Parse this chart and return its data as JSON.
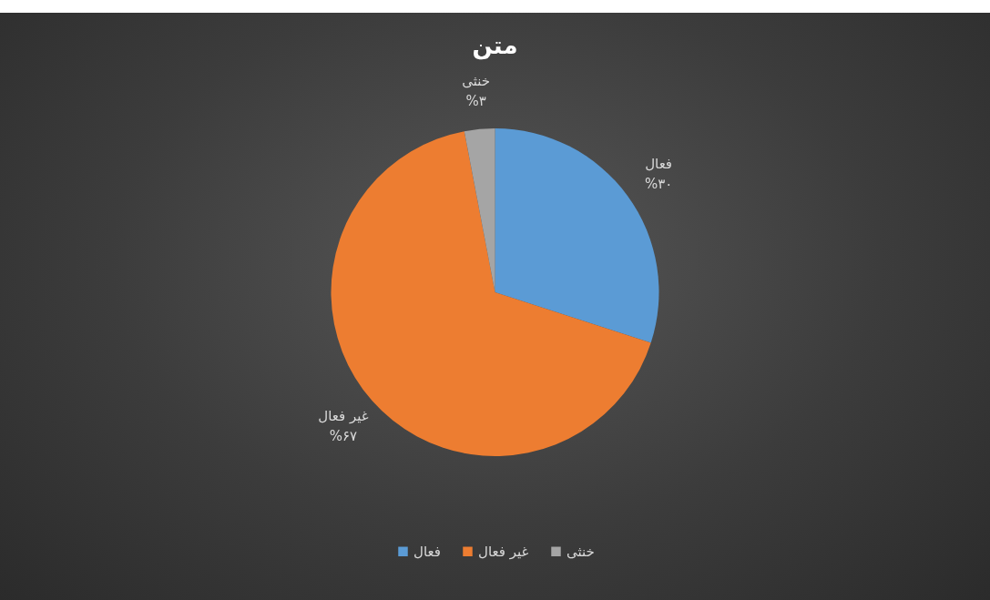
{
  "chart_data": {
    "type": "pie",
    "title": "متن",
    "categories": [
      "فعال",
      "غیر فعال",
      "خنثی"
    ],
    "values": [
      30,
      67,
      3
    ],
    "colors": [
      "#5b9bd5",
      "#ed7d31",
      "#a5a5a5"
    ],
    "value_labels": [
      "%۳۰",
      "%۶۷",
      "%۳"
    ],
    "legend": "bottom"
  }
}
